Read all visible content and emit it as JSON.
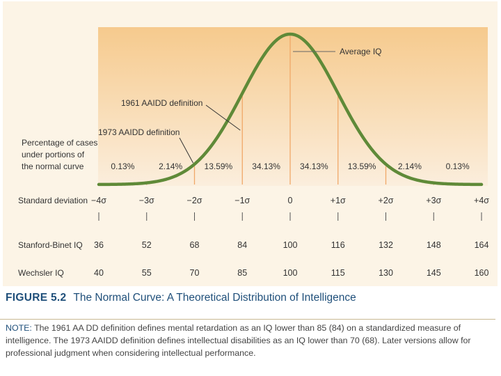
{
  "chart_data": {
    "type": "area",
    "title": "The Normal Curve: A Theoretical Distribution of Intelligence",
    "curve": "normal distribution (mean 0, sd 1)",
    "x_range": [
      -4,
      4
    ],
    "sd_values": [
      -4,
      -3,
      -2,
      -1,
      0,
      1,
      2,
      3,
      4
    ],
    "percent_area_label": "Percentage of cases under portions of the normal curve",
    "percent_area_label_lines": [
      "Percentage of cases",
      "under portions of",
      "the normal curve"
    ],
    "percentages": [
      "0.13%",
      "2.14%",
      "13.59%",
      "34.13%",
      "34.13%",
      "13.59%",
      "2.14%",
      "0.13%"
    ],
    "rows": [
      {
        "label": "Standard deviation",
        "values": [
          "−4σ",
          "−3σ",
          "−2σ",
          "−1σ",
          "0",
          "+1σ",
          "+2σ",
          "+3σ",
          "+4σ"
        ]
      },
      {
        "label": "Stanford-Binet IQ",
        "values": [
          "36",
          "52",
          "68",
          "84",
          "100",
          "116",
          "132",
          "148",
          "164"
        ]
      },
      {
        "label": "Wechsler IQ",
        "values": [
          "40",
          "55",
          "70",
          "85",
          "100",
          "115",
          "130",
          "145",
          "160"
        ]
      }
    ],
    "annotations": [
      {
        "text": "Average IQ",
        "at_sd": 0
      },
      {
        "text": "1961 AAIDD definition",
        "at_sd": -1
      },
      {
        "text": "1973 AAIDD definition",
        "at_sd": -2
      }
    ]
  },
  "colors": {
    "panel": "#fcf4e6",
    "plot_top": "#f6ca8d",
    "plot_bottom": "#fbeedd",
    "curve": "#5f8a38",
    "sd_lines": "#f0a868",
    "caption_title": "#1f4f7a"
  },
  "caption": {
    "figure_label": "FIGURE 5.2",
    "title": "The Normal Curve: A Theoretical Distribution of Intelligence",
    "note_label": "NOTE:",
    "note_text": "The 1961 AA DD definition defines mental retardation as an IQ lower than 85 (84) on a standardized measure of intelligence. The 1973 AAIDD definition defines intellectual disabilities as an IQ lower than 70 (68). Later versions allow for professional judgment when considering intellectual performance."
  }
}
